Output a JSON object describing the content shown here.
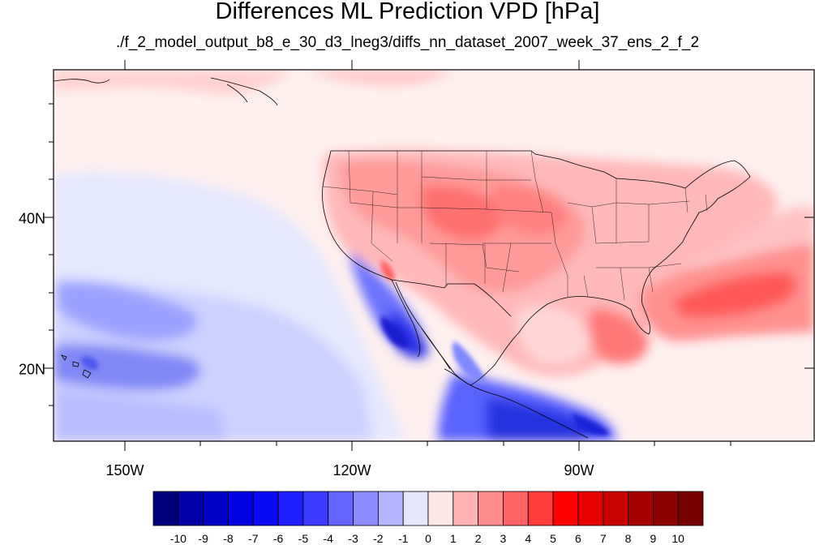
{
  "title": "Differences ML Prediction VPD [hPa]",
  "subtitle": "./f_2_model_output_b8_e_30_d3_lneg3/diffs_nn_dataset_2007_week_37_ens_2_f_2",
  "lon_labels": [
    "150W",
    "120W",
    "90W"
  ],
  "lat_labels": [
    "40N",
    "20N"
  ],
  "colorbar": {
    "labels": [
      "-10",
      "-9",
      "-8",
      "-7",
      "-6",
      "-5",
      "-4",
      "-3",
      "-2",
      "-1",
      "0",
      "1",
      "2",
      "3",
      "4",
      "5",
      "6",
      "7",
      "8",
      "9",
      "10"
    ],
    "colors": [
      "#00007a",
      "#0000a6",
      "#0000c8",
      "#0000e0",
      "#0a0af5",
      "#1e1eff",
      "#3c3cff",
      "#6464ff",
      "#8c8cff",
      "#b4b4ff",
      "#e6e6ff",
      "#ffe6e6",
      "#ffb4b4",
      "#ff8c8c",
      "#ff6464",
      "#ff3c3c",
      "#ff0000",
      "#e60000",
      "#c80000",
      "#a60000",
      "#8c0000",
      "#780000"
    ]
  }
}
